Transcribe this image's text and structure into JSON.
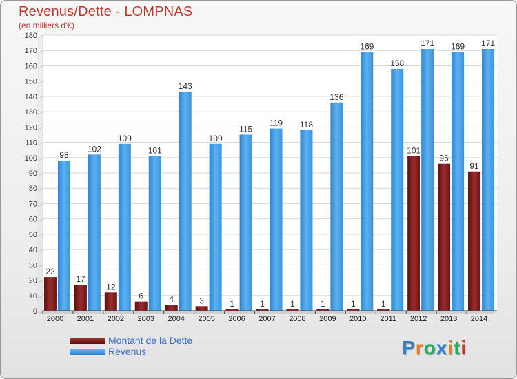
{
  "page": {
    "title": "Revenus/Dette - LOMPNAS",
    "subtitle": "(en milliers d'€)",
    "logo_letters": [
      {
        "ch": "P",
        "color": "#2f80c9"
      },
      {
        "ch": "r",
        "color": "#e67e22"
      },
      {
        "ch": "o",
        "color": "#27ae60"
      },
      {
        "ch": "x",
        "color": "#2f80c9"
      },
      {
        "ch": "i",
        "color": "#e67e22"
      },
      {
        "ch": "t",
        "color": "#27ae60"
      },
      {
        "ch": "i",
        "color": "#c0392b"
      }
    ]
  },
  "chart_data": {
    "type": "bar",
    "title": "Revenus/Dette - LOMPNAS",
    "subtitle": "(en milliers d'€)",
    "categories": [
      "2000",
      "2001",
      "2002",
      "2003",
      "2004",
      "2005",
      "2006",
      "2007",
      "2008",
      "2009",
      "2010",
      "2011",
      "2012",
      "2013",
      "2014"
    ],
    "series": [
      {
        "name": "Montant de la Dette",
        "color": "#7a1f1f",
        "values": [
          22,
          17,
          12,
          6,
          4,
          3,
          1,
          1,
          1,
          1,
          1,
          1,
          101,
          96,
          91
        ]
      },
      {
        "name": "Revenus",
        "color": "#3d9be9",
        "values": [
          98,
          102,
          109,
          101,
          143,
          109,
          115,
          119,
          118,
          136,
          169,
          158,
          171,
          169,
          171
        ]
      }
    ],
    "ylim": [
      0,
      180
    ],
    "yticks": [
      0,
      10,
      20,
      30,
      40,
      50,
      60,
      70,
      80,
      90,
      100,
      110,
      120,
      130,
      140,
      150,
      160,
      170,
      180
    ],
    "grid": true,
    "legend_position": "bottom-left"
  }
}
